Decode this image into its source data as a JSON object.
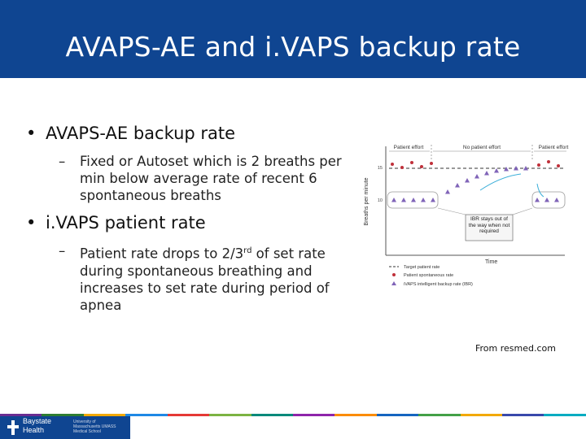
{
  "slide": {
    "title": "AVAPS-AE and i.VAPS backup rate",
    "bullets": [
      {
        "label": "AVAPS-AE backup rate",
        "sub": "Fixed or Autoset which is 2 breaths per min below average rate of recent 6 spontaneous breaths"
      },
      {
        "label": "i.VAPS patient rate",
        "sub_pre": "Patient rate drops to 2/3",
        "sub_sup": "rd",
        "sub_post": " of set rate during spontaneous breathing and increases to set rate during period of apnea"
      }
    ],
    "credit": "From resmed.com"
  },
  "figure": {
    "y_axis_label": "Breaths per minute",
    "y_tick_15": "15",
    "y_tick_10": "10",
    "x_axis_label": "Time",
    "phase_left": "Patient effort",
    "phase_middle": "No patient effort",
    "phase_right": "Patient effort",
    "callout": "IBR stays out of the way when not required",
    "legend": [
      {
        "label": "Target patient rate",
        "marker": "dashed-line"
      },
      {
        "label": "Patient spontaneous rate",
        "marker": "red-dot"
      },
      {
        "label": "iVAPS intelligent backup rate (IBR)",
        "marker": "purple-triangle"
      }
    ],
    "colors": {
      "dots": "#c0303a",
      "triangles": "#8064b8",
      "arrow": "#3aaed8"
    }
  },
  "footer": {
    "org_line1": "Baystate",
    "org_line2": "Health",
    "school": "University of Massachusetts UMASS Medical School",
    "stripe_colors": [
      "#6a2c91",
      "#2e7d32",
      "#f2a900",
      "#1e88e5",
      "#e53935",
      "#7cb342",
      "#00897b",
      "#8e24aa",
      "#fb8c00",
      "#1565c0",
      "#43a047",
      "#f2a900",
      "#3949ab",
      "#00acc1"
    ]
  }
}
